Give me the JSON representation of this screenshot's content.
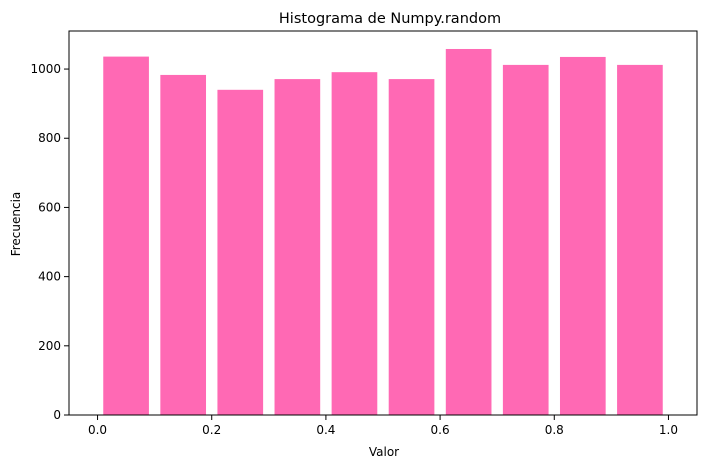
{
  "chart_data": {
    "type": "bar",
    "title": "Histograma de Numpy.random",
    "xlabel": "Valor",
    "ylabel": "Frecuencia",
    "bins": [
      {
        "x_start": 0.0,
        "x_end": 0.1,
        "value": 1036
      },
      {
        "x_start": 0.1,
        "x_end": 0.2,
        "value": 983
      },
      {
        "x_start": 0.2,
        "x_end": 0.3,
        "value": 940
      },
      {
        "x_start": 0.3,
        "x_end": 0.4,
        "value": 971
      },
      {
        "x_start": 0.4,
        "x_end": 0.5,
        "value": 991
      },
      {
        "x_start": 0.5,
        "x_end": 0.6,
        "value": 971
      },
      {
        "x_start": 0.6,
        "x_end": 0.7,
        "value": 1058
      },
      {
        "x_start": 0.7,
        "x_end": 0.8,
        "value": 1012
      },
      {
        "x_start": 0.8,
        "x_end": 0.9,
        "value": 1035
      },
      {
        "x_start": 0.9,
        "x_end": 1.0,
        "value": 1012
      }
    ],
    "bar_width_fraction": 0.8,
    "xlim": [
      -0.05,
      1.05
    ],
    "ylim": [
      0,
      1110
    ],
    "x_ticks": [
      0.0,
      0.2,
      0.4,
      0.6,
      0.8,
      1.0
    ],
    "x_tick_labels": [
      "0.0",
      "0.2",
      "0.4",
      "0.6",
      "0.8",
      "1.0"
    ],
    "y_ticks": [
      0,
      200,
      400,
      600,
      800,
      1000
    ],
    "y_tick_labels": [
      "0",
      "200",
      "400",
      "600",
      "800",
      "1000"
    ],
    "bar_color": "#ff69b4",
    "grid": false,
    "legend": false
  }
}
